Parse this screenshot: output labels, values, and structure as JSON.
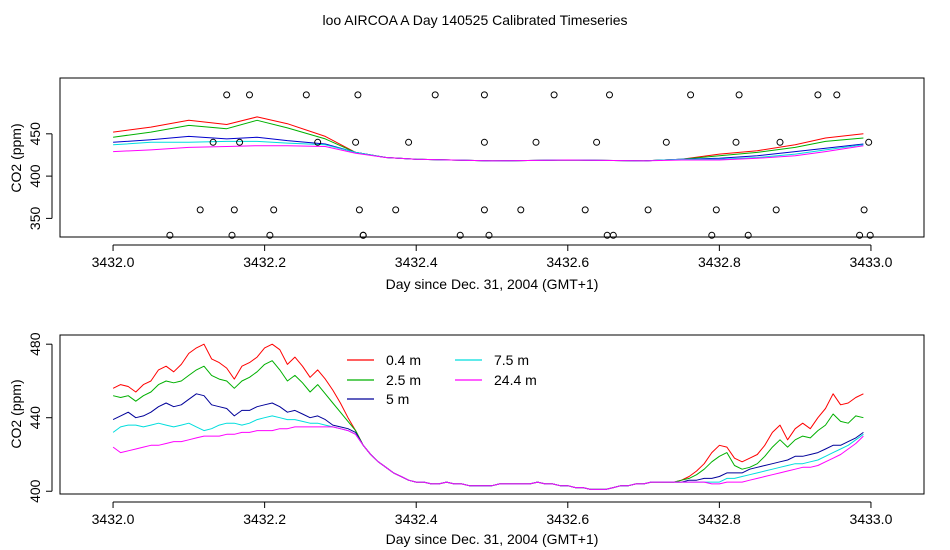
{
  "figure": {
    "title": "loo AIRCOA A  Day 140525  Calibrated Timeseries"
  },
  "chart_data": [
    {
      "type": "line",
      "xlabel": "Day since Dec. 31, 2004 (GMT+1)",
      "ylabel": "CO2 (ppm)",
      "xlim": [
        3431.93,
        3433.07
      ],
      "ylim": [
        328,
        516
      ],
      "x_ticks": [
        3432.0,
        3432.2,
        3432.4,
        3432.6,
        3432.8,
        3433.0
      ],
      "x_tick_labels": [
        "3432.0",
        "3432.2",
        "3432.4",
        "3432.6",
        "3432.8",
        "3433.0"
      ],
      "y_ticks": [
        350,
        400,
        450
      ],
      "y_tick_labels": [
        "350",
        "400",
        "450"
      ],
      "legend": false,
      "grid": false,
      "series": [
        {
          "color": "#ff0000",
          "x": [
            3432.0,
            3432.05,
            3432.1,
            3432.15,
            3432.19,
            3432.23,
            3432.28,
            3432.32,
            3432.36,
            3432.4,
            3432.5,
            3432.6,
            3432.7,
            3432.75,
            3432.8,
            3432.85,
            3432.9,
            3432.94,
            3432.99
          ],
          "y": [
            452,
            458,
            466,
            461,
            470,
            462,
            447,
            428,
            422,
            420,
            418,
            419,
            418,
            420,
            426,
            430,
            437,
            445,
            450
          ]
        },
        {
          "color": "#00b000",
          "x": [
            3432.0,
            3432.05,
            3432.1,
            3432.15,
            3432.19,
            3432.23,
            3432.28,
            3432.32,
            3432.36,
            3432.4,
            3432.5,
            3432.6,
            3432.7,
            3432.75,
            3432.8,
            3432.85,
            3432.9,
            3432.94,
            3432.99
          ],
          "y": [
            446,
            452,
            460,
            456,
            466,
            457,
            444,
            428,
            422,
            420,
            418,
            419,
            418,
            420,
            424,
            428,
            434,
            441,
            445
          ]
        },
        {
          "color": "#0000cc",
          "x": [
            3432.0,
            3432.05,
            3432.1,
            3432.15,
            3432.19,
            3432.23,
            3432.28,
            3432.32,
            3432.36,
            3432.4,
            3432.5,
            3432.6,
            3432.7,
            3432.75,
            3432.8,
            3432.85,
            3432.9,
            3432.94,
            3432.99
          ],
          "y": [
            440,
            443,
            447,
            444,
            446,
            442,
            438,
            428,
            422,
            420,
            418,
            419,
            418,
            420,
            421,
            424,
            429,
            433,
            438
          ]
        },
        {
          "color": "#00dddd",
          "x": [
            3432.0,
            3432.05,
            3432.1,
            3432.15,
            3432.19,
            3432.23,
            3432.28,
            3432.32,
            3432.36,
            3432.4,
            3432.5,
            3432.6,
            3432.7,
            3432.75,
            3432.8,
            3432.85,
            3432.9,
            3432.94,
            3432.99
          ],
          "y": [
            437,
            440,
            440,
            441,
            441,
            439,
            437,
            428,
            422,
            420,
            418,
            419,
            418,
            420,
            420,
            422,
            426,
            431,
            437
          ]
        },
        {
          "color": "#ff00ff",
          "x": [
            3432.0,
            3432.05,
            3432.1,
            3432.15,
            3432.19,
            3432.23,
            3432.28,
            3432.32,
            3432.36,
            3432.4,
            3432.5,
            3432.6,
            3432.7,
            3432.75,
            3432.8,
            3432.85,
            3432.9,
            3432.94,
            3432.99
          ],
          "y": [
            429,
            431,
            434,
            435,
            436,
            436,
            435,
            427,
            422,
            420,
            418,
            419,
            418,
            419,
            419,
            421,
            424,
            429,
            436
          ]
        }
      ],
      "points": {
        "x": [
          3432.075,
          3432.115,
          3432.132,
          3432.15,
          3432.157,
          3432.16,
          3432.167,
          3432.18,
          3432.207,
          3432.212,
          3432.255,
          3432.27,
          3432.323,
          3432.32,
          3432.325,
          3432.33,
          3432.33,
          3432.373,
          3432.39,
          3432.425,
          3432.458,
          3432.49,
          3432.49,
          3432.49,
          3432.496,
          3432.538,
          3432.558,
          3432.582,
          3432.623,
          3432.638,
          3432.652,
          3432.655,
          3432.66,
          3432.706,
          3432.73,
          3432.762,
          3432.79,
          3432.796,
          3432.822,
          3432.826,
          3432.838,
          3432.875,
          3432.88,
          3432.93,
          3432.955,
          3432.985,
          3432.991,
          3432.997,
          3432.999
        ],
        "y": [
          330,
          360,
          440,
          496,
          330,
          360,
          440,
          496,
          330,
          360,
          496,
          440,
          496,
          440,
          360,
          330,
          330,
          360,
          440,
          496,
          330,
          360,
          440,
          496,
          330,
          360,
          440,
          496,
          360,
          440,
          330,
          496,
          330,
          360,
          440,
          496,
          330,
          360,
          440,
          496,
          330,
          360,
          440,
          496,
          496,
          330,
          360,
          440,
          330
        ]
      }
    },
    {
      "type": "line",
      "xlabel": "Day since Dec. 31, 2004 (GMT+1)",
      "ylabel": "CO2 (ppm)",
      "xlim": [
        3431.93,
        3433.07
      ],
      "ylim": [
        398.5,
        485
      ],
      "x_ticks": [
        3432.0,
        3432.2,
        3432.4,
        3432.6,
        3432.8,
        3433.0
      ],
      "x_tick_labels": [
        "3432.0",
        "3432.2",
        "3432.4",
        "3432.6",
        "3432.8",
        "3433.0"
      ],
      "y_ticks": [
        400,
        440,
        480
      ],
      "y_tick_labels": [
        "400",
        "440",
        "480"
      ],
      "legend_position": "top-center",
      "grid": false,
      "x": [
        3432.0,
        3432.01,
        3432.02,
        3432.03,
        3432.04,
        3432.05,
        3432.06,
        3432.07,
        3432.08,
        3432.09,
        3432.1,
        3432.11,
        3432.12,
        3432.13,
        3432.14,
        3432.15,
        3432.16,
        3432.17,
        3432.18,
        3432.19,
        3432.2,
        3432.21,
        3432.22,
        3432.23,
        3432.24,
        3432.25,
        3432.26,
        3432.27,
        3432.28,
        3432.29,
        3432.3,
        3432.31,
        3432.32,
        3432.33,
        3432.34,
        3432.35,
        3432.36,
        3432.37,
        3432.38,
        3432.39,
        3432.4,
        3432.41,
        3432.42,
        3432.43,
        3432.44,
        3432.45,
        3432.46,
        3432.47,
        3432.48,
        3432.49,
        3432.5,
        3432.51,
        3432.52,
        3432.53,
        3432.54,
        3432.55,
        3432.56,
        3432.57,
        3432.58,
        3432.59,
        3432.6,
        3432.61,
        3432.62,
        3432.63,
        3432.64,
        3432.65,
        3432.66,
        3432.67,
        3432.68,
        3432.69,
        3432.7,
        3432.71,
        3432.72,
        3432.73,
        3432.74,
        3432.75,
        3432.76,
        3432.77,
        3432.78,
        3432.79,
        3432.8,
        3432.81,
        3432.82,
        3432.83,
        3432.84,
        3432.85,
        3432.86,
        3432.87,
        3432.88,
        3432.89,
        3432.9,
        3432.91,
        3432.92,
        3432.93,
        3432.94,
        3432.95,
        3432.96,
        3432.97,
        3432.98,
        3432.99
      ],
      "series": [
        {
          "name": "0.4 m",
          "color": "#ff0000",
          "y": [
            456,
            458,
            457,
            454,
            458,
            460,
            466,
            468,
            465,
            469,
            475,
            478,
            480,
            472,
            470,
            467,
            461,
            468,
            470,
            473,
            478,
            480,
            477,
            469,
            473,
            468,
            462,
            466,
            461,
            455,
            448,
            440,
            433,
            425,
            420,
            416,
            413,
            410,
            408,
            406,
            405,
            405,
            404,
            404,
            405,
            404,
            404,
            403,
            403,
            403,
            403,
            404,
            404,
            404,
            404,
            404,
            405,
            404,
            404,
            403,
            403,
            402,
            402,
            401,
            401,
            401,
            402,
            403,
            403,
            404,
            404,
            405,
            405,
            405,
            405,
            406,
            408,
            411,
            415,
            421,
            425,
            424,
            418,
            416,
            418,
            420,
            425,
            432,
            436,
            428,
            434,
            437,
            434,
            440,
            445,
            453,
            447,
            448,
            451,
            453
          ]
        },
        {
          "name": "2.5 m",
          "color": "#00b000",
          "y": [
            452,
            451,
            452,
            449,
            452,
            454,
            458,
            460,
            459,
            460,
            463,
            466,
            468,
            463,
            461,
            460,
            456,
            460,
            462,
            465,
            469,
            471,
            466,
            460,
            463,
            459,
            454,
            458,
            453,
            448,
            443,
            438,
            433,
            425,
            420,
            416,
            413,
            410,
            408,
            406,
            405,
            405,
            404,
            404,
            405,
            404,
            404,
            403,
            403,
            403,
            403,
            404,
            404,
            404,
            404,
            404,
            405,
            404,
            404,
            403,
            403,
            402,
            402,
            401,
            401,
            401,
            402,
            403,
            403,
            404,
            404,
            405,
            405,
            405,
            405,
            406,
            407,
            409,
            412,
            416,
            419,
            421,
            414,
            412,
            413,
            415,
            419,
            424,
            428,
            424,
            428,
            430,
            429,
            433,
            436,
            442,
            438,
            437,
            441,
            440
          ]
        },
        {
          "name": "5 m",
          "color": "#000099",
          "y": [
            439,
            441,
            443,
            440,
            441,
            443,
            446,
            448,
            446,
            447,
            450,
            453,
            452,
            447,
            446,
            445,
            441,
            444,
            444,
            446,
            447,
            448,
            446,
            443,
            444,
            442,
            440,
            441,
            439,
            436,
            435,
            434,
            432,
            425,
            420,
            416,
            413,
            410,
            408,
            406,
            405,
            405,
            404,
            404,
            405,
            404,
            404,
            403,
            403,
            403,
            403,
            404,
            404,
            404,
            404,
            404,
            405,
            404,
            404,
            403,
            403,
            402,
            402,
            401,
            401,
            401,
            402,
            403,
            403,
            404,
            404,
            405,
            405,
            405,
            405,
            405,
            406,
            406,
            407,
            407,
            408,
            410,
            410,
            410,
            412,
            413,
            414,
            415,
            416,
            417,
            419,
            419,
            420,
            421,
            423,
            425,
            425,
            427,
            429,
            432
          ]
        },
        {
          "name": "7.5 m",
          "color": "#00dddd",
          "y": [
            432,
            435,
            436,
            436,
            435,
            436,
            437,
            436,
            435,
            436,
            437,
            435,
            433,
            434,
            436,
            437,
            437,
            436,
            437,
            439,
            440,
            441,
            440,
            439,
            439,
            438,
            437,
            437,
            436,
            435,
            434,
            433,
            431,
            425,
            420,
            416,
            413,
            410,
            408,
            406,
            405,
            405,
            404,
            404,
            405,
            404,
            404,
            403,
            403,
            403,
            403,
            404,
            404,
            404,
            404,
            404,
            405,
            404,
            404,
            403,
            403,
            402,
            402,
            401,
            401,
            401,
            402,
            403,
            403,
            404,
            404,
            405,
            405,
            405,
            405,
            405,
            405,
            405,
            405,
            405,
            405,
            407,
            407,
            408,
            409,
            410,
            411,
            412,
            413,
            414,
            415,
            415,
            416,
            417,
            419,
            421,
            423,
            425,
            428,
            431
          ]
        },
        {
          "name": "24.4 m",
          "color": "#ff00ff",
          "y": [
            424,
            421,
            422,
            423,
            424,
            425,
            425,
            426,
            427,
            427,
            428,
            429,
            430,
            430,
            430,
            431,
            431,
            432,
            432,
            433,
            433,
            433,
            434,
            434,
            435,
            435,
            435,
            435,
            435,
            435,
            434,
            433,
            431,
            425,
            420,
            416,
            413,
            410,
            408,
            406,
            405,
            405,
            404,
            404,
            405,
            404,
            404,
            403,
            403,
            403,
            403,
            404,
            404,
            404,
            404,
            404,
            405,
            404,
            404,
            403,
            403,
            402,
            402,
            401,
            401,
            401,
            402,
            403,
            403,
            404,
            404,
            405,
            405,
            405,
            405,
            405,
            405,
            405,
            405,
            404,
            404,
            405,
            405,
            405,
            406,
            407,
            408,
            409,
            410,
            411,
            412,
            413,
            413,
            414,
            416,
            418,
            420,
            423,
            426,
            430
          ]
        }
      ]
    }
  ]
}
